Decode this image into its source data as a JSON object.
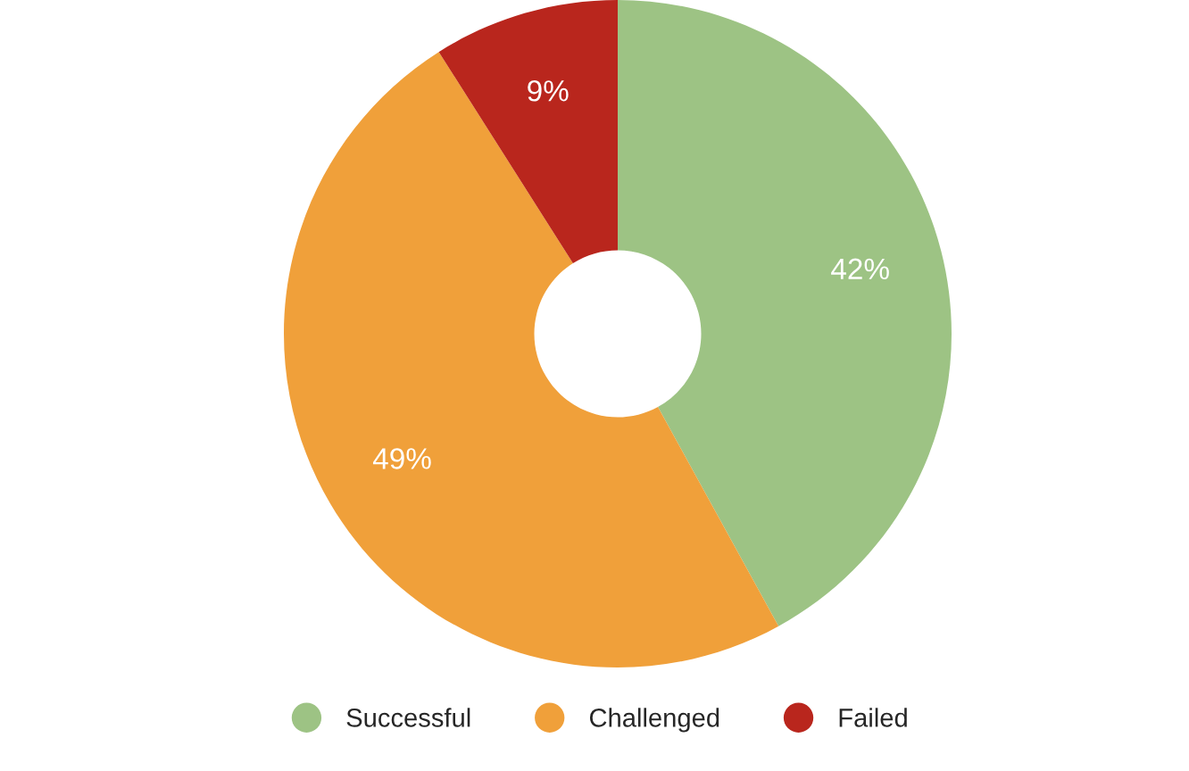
{
  "chart_data": {
    "type": "donut",
    "categories": [
      "Successful",
      "Challenged",
      "Failed"
    ],
    "values": [
      42,
      49,
      9
    ],
    "colors": [
      "#9dc384",
      "#f0a03a",
      "#b9261d"
    ],
    "value_labels": [
      "42%",
      "49%",
      "9%"
    ],
    "legend": "bottom"
  }
}
